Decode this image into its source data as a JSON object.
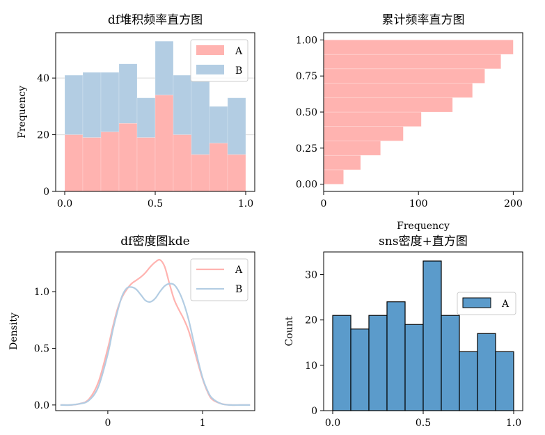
{
  "chart_data": [
    {
      "type": "bar",
      "subtype": "stacked-histogram",
      "title": "df堆积频率直方图",
      "xlabel": "",
      "ylabel": "Frequency",
      "xlim": [
        -0.05,
        1.05
      ],
      "ylim": [
        0,
        56
      ],
      "xticks": [
        "0.0",
        "0.5",
        "1.0"
      ],
      "yticks": [
        "0",
        "20",
        "40"
      ],
      "grid": true,
      "legend": "top-right",
      "bin_edges": [
        0.0,
        0.1,
        0.2,
        0.3,
        0.4,
        0.5,
        0.6,
        0.7,
        0.8,
        0.9,
        1.0
      ],
      "series": [
        {
          "name": "A",
          "color": "#FFB3B0",
          "values": [
            20,
            19,
            21,
            24,
            19,
            34,
            20,
            13,
            17,
            13
          ]
        },
        {
          "name": "B",
          "color": "#B3CDE3",
          "values": [
            21,
            23,
            21,
            21,
            14,
            19,
            21,
            26,
            13,
            20
          ]
        }
      ]
    },
    {
      "type": "bar",
      "subtype": "horizontal-cumulative-histogram",
      "title": "累计频率直方图",
      "xlabel": "Frequency",
      "ylabel": "",
      "xlim": [
        0,
        210
      ],
      "ylim": [
        -0.05,
        1.05
      ],
      "xticks": [
        "0",
        "100",
        "200"
      ],
      "yticks": [
        "0.00",
        "0.25",
        "0.50",
        "0.75",
        "1.00"
      ],
      "color": "#FFB3B0",
      "bin_edges": [
        0.0,
        0.1,
        0.2,
        0.3,
        0.4,
        0.5,
        0.6,
        0.7,
        0.8,
        0.9,
        1.0
      ],
      "values": [
        21,
        39,
        60,
        84,
        103,
        136,
        157,
        170,
        187,
        200
      ]
    },
    {
      "type": "line",
      "subtype": "kde",
      "title": "df密度图kde",
      "xlabel": "",
      "ylabel": "Density",
      "xlim": [
        -0.55,
        1.55
      ],
      "ylim": [
        -0.05,
        1.35
      ],
      "xticks": [
        "0",
        "1"
      ],
      "yticks": [
        "0.0",
        "0.5",
        "1.0"
      ],
      "legend": "top-right",
      "x": [
        -0.5,
        -0.4,
        -0.3,
        -0.2,
        -0.1,
        0.0,
        0.05,
        0.1,
        0.15,
        0.2,
        0.25,
        0.3,
        0.35,
        0.4,
        0.45,
        0.5,
        0.55,
        0.6,
        0.65,
        0.7,
        0.75,
        0.8,
        0.85,
        0.9,
        0.95,
        1.0,
        1.05,
        1.1,
        1.2,
        1.3,
        1.4,
        1.5
      ],
      "series": [
        {
          "name": "A",
          "color": "#FFB3B0",
          "values": [
            0.0,
            0.0,
            0.01,
            0.05,
            0.2,
            0.5,
            0.68,
            0.84,
            0.95,
            1.02,
            1.07,
            1.1,
            1.13,
            1.17,
            1.22,
            1.26,
            1.28,
            1.22,
            1.07,
            0.93,
            0.84,
            0.76,
            0.66,
            0.52,
            0.37,
            0.23,
            0.12,
            0.05,
            0.01,
            0.0,
            0.0,
            0.0
          ]
        },
        {
          "name": "B",
          "color": "#B3CDE3",
          "values": [
            0.0,
            0.0,
            0.01,
            0.04,
            0.16,
            0.45,
            0.65,
            0.82,
            0.96,
            1.03,
            1.04,
            1.02,
            0.97,
            0.92,
            0.91,
            0.94,
            1.0,
            1.05,
            1.07,
            1.06,
            1.0,
            0.9,
            0.76,
            0.58,
            0.4,
            0.24,
            0.13,
            0.06,
            0.01,
            0.0,
            0.0,
            0.0
          ]
        }
      ]
    },
    {
      "type": "bar",
      "subtype": "histogram",
      "title": "sns密度+直方图",
      "xlabel": "",
      "ylabel": "Count",
      "xlim": [
        -0.05,
        1.05
      ],
      "ylim": [
        0,
        35
      ],
      "xticks": [
        "0.0",
        "0.5",
        "1.0"
      ],
      "yticks": [
        "0",
        "10",
        "20",
        "30"
      ],
      "legend": "center-right",
      "color": "#5B9BCB",
      "bin_edges": [
        0.0,
        0.1,
        0.2,
        0.3,
        0.4,
        0.5,
        0.6,
        0.7,
        0.8,
        0.9,
        1.0
      ],
      "series": [
        {
          "name": "A",
          "values": [
            21,
            18,
            21,
            24,
            19,
            33,
            21,
            13,
            17,
            13
          ]
        }
      ]
    }
  ]
}
